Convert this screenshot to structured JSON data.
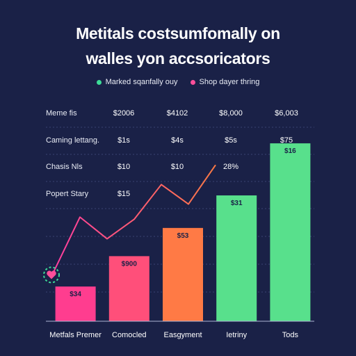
{
  "chart_data": {
    "type": "bar",
    "title": [
      "Metitals costsumfomally on",
      "walles yon accsoricators"
    ],
    "legend": [
      {
        "label": "Marked sqanfally ouy",
        "color": "#3ddc97"
      },
      {
        "label": "Shop dayer thring",
        "color": "#ff4f9a"
      }
    ],
    "categories": [
      "Metfals Premer",
      "Comocled",
      "Easgyment",
      "Ietriny",
      "Tods"
    ],
    "values": [
      16,
      30,
      43,
      58,
      82
    ],
    "bar_colors": [
      "#ff3d8f",
      "#ff4f7a",
      "#ff7a45",
      "#58e08c",
      "#58e08c"
    ],
    "bar_labels": [
      "$34",
      "$900",
      "$53",
      "$31",
      "$16"
    ],
    "line_values": [
      22,
      48,
      38,
      47,
      63,
      54,
      72
    ],
    "line_color": "#ff6a5a",
    "ylim": [
      0,
      100
    ],
    "grid": true,
    "table_rows": [
      {
        "label": "Meme fis",
        "cells": [
          "$2006",
          "$4102",
          "$8,000",
          "$6,003"
        ]
      },
      {
        "label": "Caming lettang.",
        "cells": [
          "$1s",
          "$4s",
          "$5s",
          "$75"
        ]
      },
      {
        "label": "Chasis Nls",
        "cells": [
          "$10",
          "$10",
          "28%",
          ""
        ]
      },
      {
        "label": "Popert Stary",
        "cells": [
          "$15",
          "",
          "",
          ""
        ]
      }
    ]
  }
}
